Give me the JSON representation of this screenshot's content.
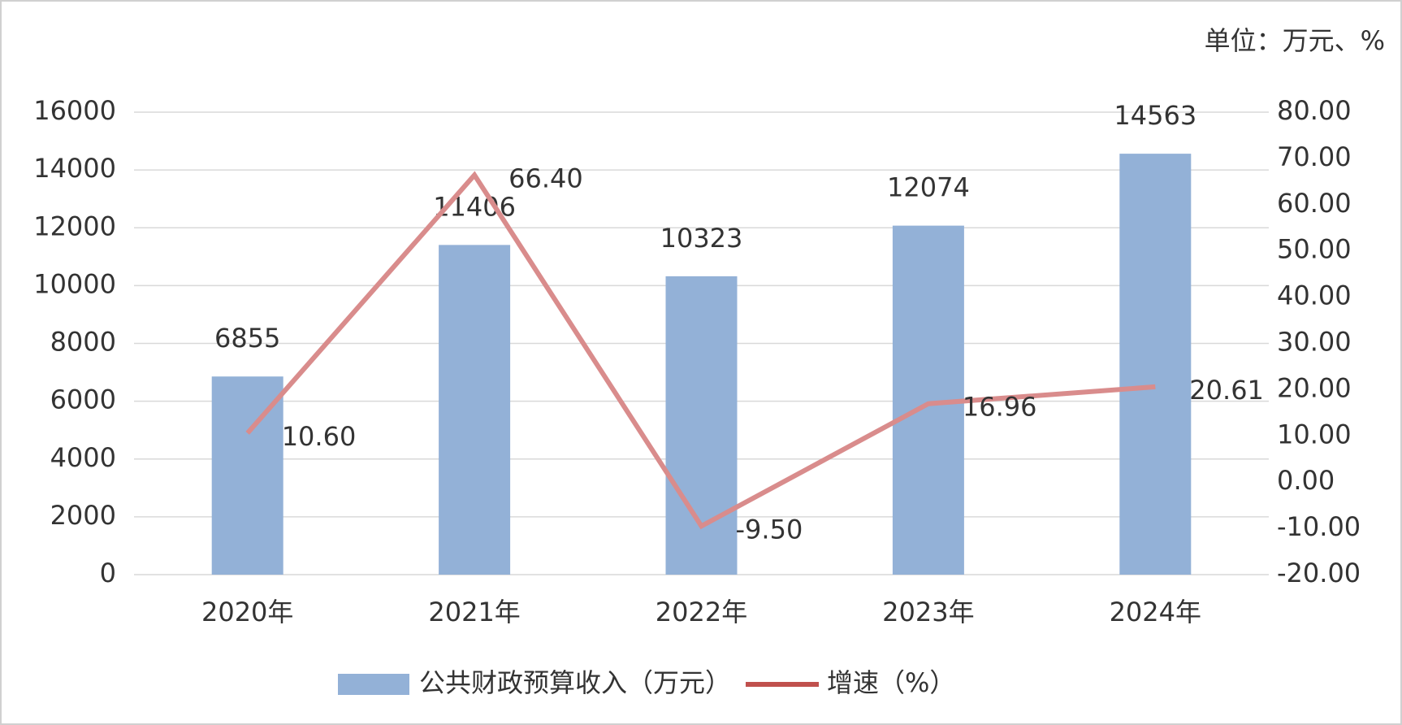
{
  "chart_data": {
    "type": "bar-line",
    "unit_note": "单位：万元、%",
    "categories": [
      "2020年",
      "2021年",
      "2022年",
      "2023年",
      "2024年"
    ],
    "series": [
      {
        "name": "公共财政预算收入（万元）",
        "type": "bar",
        "color": "#93b1d7",
        "values": [
          6855,
          11406,
          10323,
          12074,
          14563
        ]
      },
      {
        "name": "增速（%）",
        "type": "line",
        "axis": "y2",
        "color": "#d98c8c",
        "legend_color": "#c0504d",
        "values": [
          10.6,
          66.4,
          -9.5,
          16.96,
          20.61
        ],
        "value_labels": [
          "10.60",
          "66.40",
          "-9.50",
          "16.96",
          "20.61"
        ]
      }
    ],
    "ylim": [
      0,
      16000
    ],
    "yticks": [
      0,
      2000,
      4000,
      6000,
      8000,
      10000,
      12000,
      14000,
      16000
    ],
    "y2lim": [
      -20,
      80
    ],
    "y2ticks": [
      {
        "value": -20,
        "label": "-20.00"
      },
      {
        "value": -10,
        "label": "-10.00"
      },
      {
        "value": 0,
        "label": "0.00"
      },
      {
        "value": 10,
        "label": "10.00"
      },
      {
        "value": 20,
        "label": "20.00"
      },
      {
        "value": 30,
        "label": "30.00"
      },
      {
        "value": 40,
        "label": "40.00"
      },
      {
        "value": 50,
        "label": "50.00"
      },
      {
        "value": 60,
        "label": "60.00"
      },
      {
        "value": 70,
        "label": "70.00"
      },
      {
        "value": 80,
        "label": "80.00"
      }
    ],
    "grid": true
  }
}
